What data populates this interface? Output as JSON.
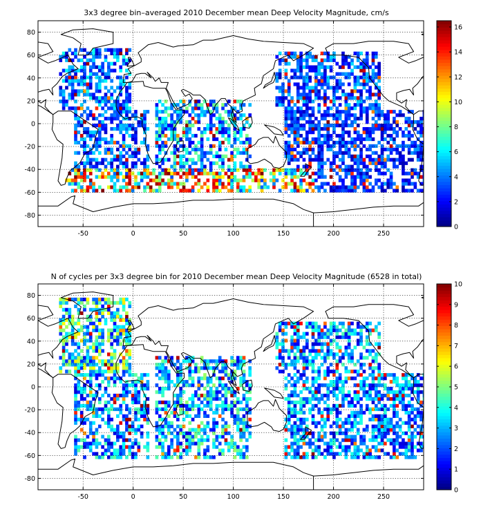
{
  "chart_data": [
    {
      "type": "heatmap",
      "title": "3x3 degree bin–averaged 2010 December mean Deep Velocity Magnitude, cm/s",
      "xlim": [
        -95,
        290
      ],
      "ylim": [
        -90,
        90
      ],
      "xticks": [
        -50,
        0,
        50,
        100,
        150,
        200,
        250
      ],
      "yticks": [
        -80,
        -60,
        -40,
        -20,
        0,
        20,
        40,
        60,
        80
      ],
      "colorbar": {
        "min": 0,
        "max": 16.5,
        "ticks": [
          0,
          2,
          4,
          6,
          8,
          10,
          12,
          14,
          16
        ],
        "colormap": "jet"
      },
      "grid": true,
      "bin_size_deg": 3,
      "coverage_regions": [
        {
          "lon": [
            -75,
            -5
          ],
          "lat": [
            10,
            65
          ],
          "density": 0.55,
          "mean": 3.5
        },
        {
          "lon": [
            -60,
            15
          ],
          "lat": [
            -60,
            10
          ],
          "density": 0.5,
          "mean": 3.0
        },
        {
          "lon": [
            20,
            115
          ],
          "lat": [
            -60,
            20
          ],
          "density": 0.55,
          "mean": 4.5
        },
        {
          "lon": [
            140,
            245
          ],
          "lat": [
            10,
            60
          ],
          "density": 0.6,
          "mean": 3.0
        },
        {
          "lon": [
            150,
            290
          ],
          "lat": [
            -60,
            10
          ],
          "density": 0.6,
          "mean": 2.5
        },
        {
          "lon": [
            -70,
            180
          ],
          "lat": [
            -62,
            -40
          ],
          "density": 0.55,
          "mean": 9.0
        }
      ]
    },
    {
      "type": "heatmap",
      "title": "N of cycles per 3x3 degree bin for 2010 December mean Deep Velocity Magnitude (6528 in total)",
      "xlim": [
        -95,
        290
      ],
      "ylim": [
        -90,
        90
      ],
      "xticks": [
        -50,
        0,
        50,
        100,
        150,
        200,
        250
      ],
      "yticks": [
        -80,
        -60,
        -40,
        -20,
        0,
        20,
        40,
        60,
        80
      ],
      "colorbar": {
        "min": 0,
        "max": 10,
        "ticks": [
          0,
          1,
          2,
          3,
          4,
          5,
          6,
          7,
          8,
          9,
          10
        ],
        "colormap": "jet"
      },
      "grid": true,
      "bin_size_deg": 3,
      "total_cycles": 6528,
      "coverage_regions": [
        {
          "lon": [
            -75,
            -5
          ],
          "lat": [
            10,
            75
          ],
          "density": 0.6,
          "mean": 3.5
        },
        {
          "lon": [
            -60,
            15
          ],
          "lat": [
            -65,
            10
          ],
          "density": 0.55,
          "mean": 2.5
        },
        {
          "lon": [
            20,
            115
          ],
          "lat": [
            -65,
            25
          ],
          "density": 0.55,
          "mean": 2.8
        },
        {
          "lon": [
            140,
            245
          ],
          "lat": [
            10,
            55
          ],
          "density": 0.6,
          "mean": 2.5
        },
        {
          "lon": [
            150,
            290
          ],
          "lat": [
            -65,
            10
          ],
          "density": 0.6,
          "mean": 2.3
        }
      ]
    }
  ]
}
